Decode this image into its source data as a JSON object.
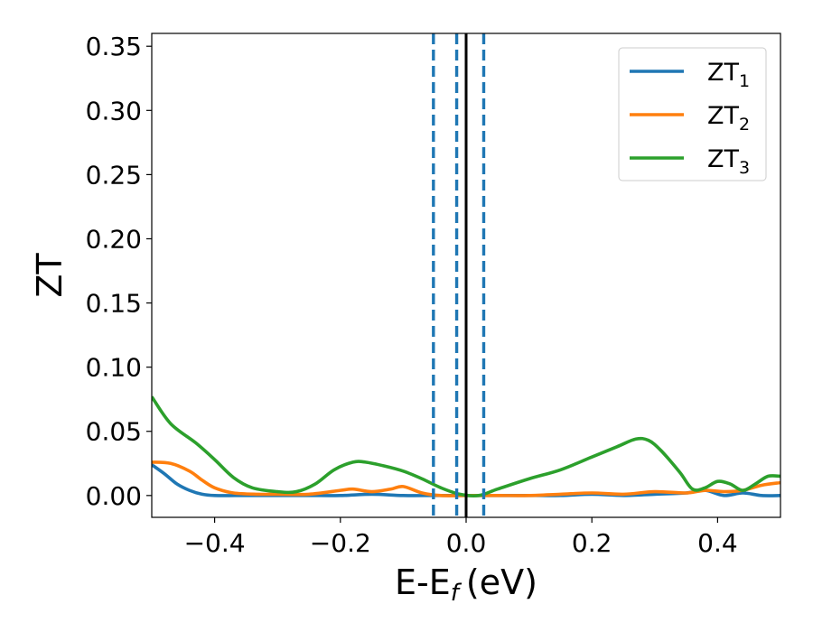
{
  "chart_data": {
    "type": "line",
    "xlabel": "E-E",
    "xlabel_sub": "f",
    "xlabel_unit": "(eV)",
    "ylabel": "ZT",
    "xlim": [
      -0.5,
      0.5
    ],
    "ylim": [
      -0.017,
      0.36
    ],
    "x_ticks": [
      -0.4,
      -0.2,
      0.0,
      0.2,
      0.4
    ],
    "x_tick_labels": [
      "−0.4",
      "−0.2",
      "0.0",
      "0.2",
      "0.4"
    ],
    "y_ticks": [
      0.0,
      0.05,
      0.1,
      0.15,
      0.2,
      0.25,
      0.3,
      0.35
    ],
    "y_tick_labels": [
      "0.00",
      "0.05",
      "0.10",
      "0.15",
      "0.20",
      "0.25",
      "0.30",
      "0.35"
    ],
    "grid": false,
    "legend_position": "top-right",
    "series": [
      {
        "name": "ZT",
        "name_sub": "1",
        "color": "#1f77b4",
        "x": [
          -0.5,
          -0.48,
          -0.46,
          -0.44,
          -0.42,
          -0.4,
          -0.35,
          -0.3,
          -0.25,
          -0.2,
          -0.15,
          -0.1,
          -0.05,
          0.0,
          0.05,
          0.1,
          0.15,
          0.2,
          0.25,
          0.3,
          0.35,
          0.38,
          0.41,
          0.44,
          0.47,
          0.5
        ],
        "y": [
          0.024,
          0.017,
          0.009,
          0.004,
          0.001,
          0.0,
          0.0,
          0.0,
          0.0,
          0.0,
          0.001,
          0.0,
          0.0,
          0.0,
          0.0,
          0.0,
          0.0,
          0.001,
          0.0,
          0.001,
          0.002,
          0.004,
          0.0,
          0.002,
          0.0,
          0.0
        ]
      },
      {
        "name": "ZT",
        "name_sub": "2",
        "color": "#ff7f0e",
        "x": [
          -0.5,
          -0.47,
          -0.44,
          -0.42,
          -0.4,
          -0.37,
          -0.33,
          -0.3,
          -0.25,
          -0.2,
          -0.18,
          -0.15,
          -0.12,
          -0.1,
          -0.07,
          -0.04,
          0.0,
          0.05,
          0.1,
          0.15,
          0.2,
          0.25,
          0.3,
          0.35,
          0.38,
          0.41,
          0.44,
          0.47,
          0.5
        ],
        "y": [
          0.026,
          0.025,
          0.019,
          0.012,
          0.006,
          0.002,
          0.001,
          0.001,
          0.001,
          0.004,
          0.005,
          0.003,
          0.005,
          0.007,
          0.002,
          0.0,
          0.0,
          0.0,
          0.0,
          0.001,
          0.002,
          0.001,
          0.003,
          0.002,
          0.004,
          0.003,
          0.004,
          0.008,
          0.01
        ]
      },
      {
        "name": "ZT",
        "name_sub": "3",
        "color": "#2ca02c",
        "x": [
          -0.5,
          -0.47,
          -0.43,
          -0.4,
          -0.37,
          -0.34,
          -0.3,
          -0.27,
          -0.24,
          -0.21,
          -0.18,
          -0.16,
          -0.13,
          -0.1,
          -0.07,
          -0.04,
          -0.01,
          0.02,
          0.05,
          0.1,
          0.15,
          0.2,
          0.24,
          0.27,
          0.29,
          0.31,
          0.34,
          0.36,
          0.38,
          0.4,
          0.42,
          0.44,
          0.46,
          0.48,
          0.5
        ],
        "y": [
          0.077,
          0.056,
          0.041,
          0.028,
          0.014,
          0.006,
          0.003,
          0.003,
          0.009,
          0.02,
          0.026,
          0.026,
          0.023,
          0.019,
          0.013,
          0.006,
          0.001,
          0.0,
          0.005,
          0.013,
          0.02,
          0.03,
          0.038,
          0.044,
          0.043,
          0.035,
          0.018,
          0.005,
          0.006,
          0.011,
          0.009,
          0.004,
          0.009,
          0.015,
          0.015
        ]
      }
    ],
    "reference_lines": [
      {
        "x": 0.0,
        "style": "solid",
        "color": "#000000"
      },
      {
        "x": -0.052,
        "style": "dashed",
        "color": "#1f77b4"
      },
      {
        "x": -0.015,
        "style": "dashed",
        "color": "#1f77b4"
      },
      {
        "x": 0.028,
        "style": "dashed",
        "color": "#1f77b4"
      }
    ]
  }
}
